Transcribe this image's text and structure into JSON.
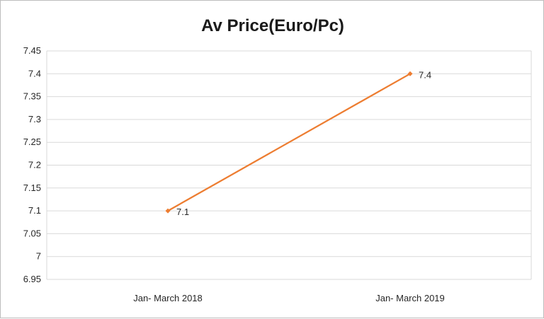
{
  "chart_data": {
    "type": "line",
    "title": "Av Price(Euro/Pc)",
    "xlabel": "",
    "ylabel": "",
    "categories": [
      "Jan- March 2018",
      "Jan- March 2019"
    ],
    "series": [
      {
        "values": [
          7.1,
          7.4
        ],
        "data_labels": [
          "7.1",
          "7.4"
        ],
        "color": "#ED7D31"
      }
    ],
    "ylim": [
      6.95,
      7.45
    ],
    "yticks": [
      "6.95",
      "7",
      "7.05",
      "7.1",
      "7.15",
      "7.2",
      "7.25",
      "7.3",
      "7.35",
      "7.4",
      "7.45"
    ],
    "grid": true,
    "legend": "none"
  }
}
